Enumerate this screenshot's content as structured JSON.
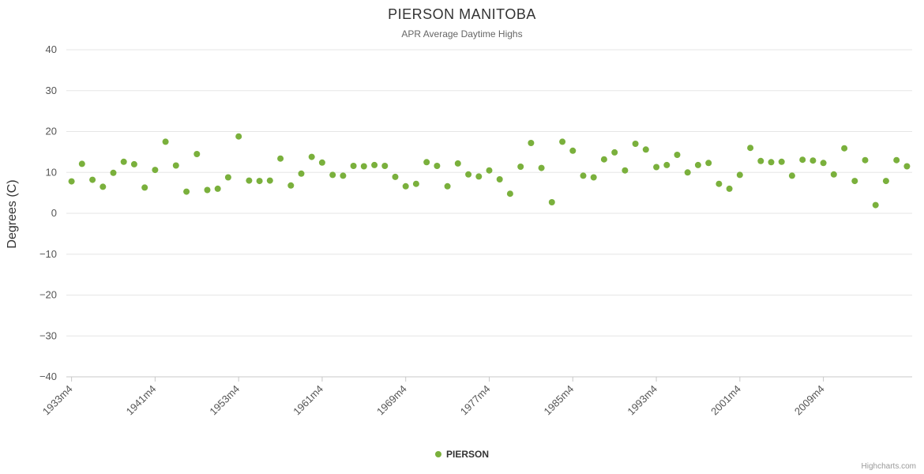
{
  "chart": {
    "title": "PIERSON MANITOBA",
    "subtitle": "APR Average Daytime Highs",
    "y_axis_title": "Degrees (C)",
    "legend_label": "PIERSON",
    "credits": "Highcharts.com",
    "accent_color": "#7ab03c"
  },
  "chart_data": {
    "type": "scatter",
    "title": "PIERSON MANITOBA",
    "subtitle": "APR Average Daytime Highs",
    "xlabel": "",
    "ylabel": "Degrees (C)",
    "ylim": [
      -40,
      40
    ],
    "y_ticks": [
      40,
      30,
      20,
      10,
      0,
      -10,
      -20,
      -30,
      -40
    ],
    "grid": true,
    "legend_position": "bottom",
    "x_tick_labels": [
      "1933m4",
      "1941m4",
      "1953m4",
      "1961m4",
      "1969m4",
      "1977m4",
      "1985m4",
      "1993m4",
      "2001m4",
      "2009m4"
    ],
    "categories": [
      "1933m4",
      "1934m4",
      "1935m4",
      "1936m4",
      "1937m4",
      "1938m4",
      "1939m4",
      "1940m4",
      "1941m4",
      "1946m4",
      "1947m4",
      "1948m4",
      "1949m4",
      "1950m4",
      "1951m4",
      "1952m4",
      "1953m4",
      "1954m4",
      "1955m4",
      "1956m4",
      "1957m4",
      "1958m4",
      "1959m4",
      "1960m4",
      "1961m4",
      "1962m4",
      "1963m4",
      "1964m4",
      "1965m4",
      "1966m4",
      "1967m4",
      "1968m4",
      "1969m4",
      "1970m4",
      "1971m4",
      "1972m4",
      "1973m4",
      "1974m4",
      "1975m4",
      "1976m4",
      "1977m4",
      "1978m4",
      "1979m4",
      "1980m4",
      "1981m4",
      "1982m4",
      "1983m4",
      "1984m4",
      "1985m4",
      "1986m4",
      "1987m4",
      "1988m4",
      "1989m4",
      "1990m4",
      "1991m4",
      "1992m4",
      "1993m4",
      "1994m4",
      "1995m4",
      "1996m4",
      "1997m4",
      "1998m4",
      "1999m4",
      "2000m4",
      "2001m4",
      "2002m4",
      "2003m4",
      "2004m4",
      "2005m4",
      "2006m4",
      "2007m4",
      "2008m4",
      "2009m4",
      "2010m4",
      "2011m4",
      "2012m4",
      "2013m4",
      "2014m4",
      "2015m4",
      "2016m4",
      "2017m4"
    ],
    "series": [
      {
        "name": "PIERSON",
        "color": "#7ab03c",
        "values": [
          7.8,
          12.1,
          8.2,
          6.5,
          9.9,
          12.6,
          12.0,
          6.3,
          10.6,
          17.5,
          11.7,
          5.3,
          14.5,
          5.7,
          6.0,
          8.8,
          18.8,
          8.0,
          7.9,
          8.0,
          13.4,
          6.8,
          9.7,
          13.8,
          12.4,
          9.4,
          9.2,
          11.6,
          11.5,
          11.8,
          11.6,
          8.9,
          6.6,
          7.2,
          12.5,
          11.6,
          6.6,
          12.2,
          9.5,
          9.0,
          10.5,
          8.3,
          4.8,
          11.4,
          17.2,
          11.1,
          2.7,
          17.5,
          15.3,
          9.2,
          8.8,
          13.2,
          14.9,
          10.5,
          17.0,
          15.6,
          11.3,
          11.8,
          14.3,
          10.0,
          11.8,
          12.3,
          7.2,
          6.0,
          9.4,
          16.0,
          12.8,
          12.5,
          12.6,
          9.2,
          13.1,
          12.9,
          12.3,
          9.5,
          15.9,
          7.9,
          13.0,
          2.0,
          7.9,
          13.0,
          11.5
        ]
      }
    ]
  }
}
